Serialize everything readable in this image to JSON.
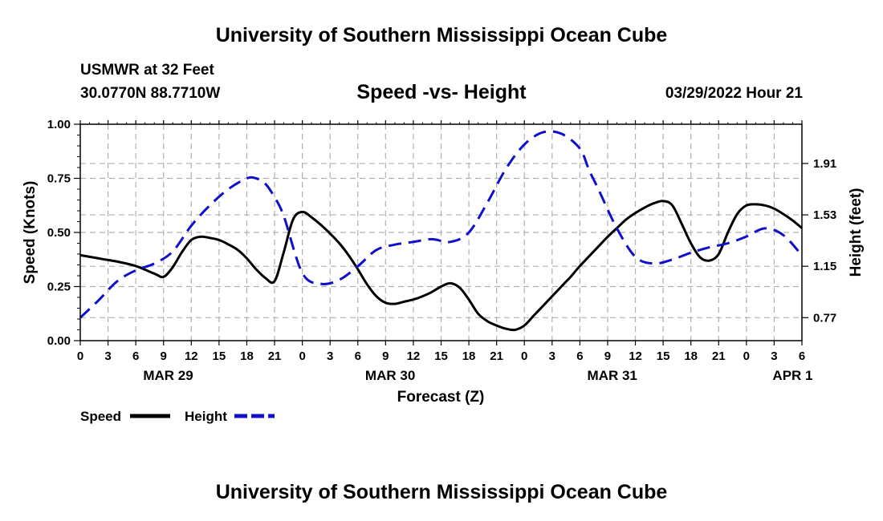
{
  "header": {
    "title": "University of Southern Mississippi Ocean Cube",
    "station": "USMWR at 32 Feet",
    "coords": "30.0770N  88.7710W",
    "chart_title": "Speed -vs- Height",
    "datetime": "03/29/2022 Hour 21"
  },
  "footer": {
    "title": "University of Southern Mississippi Ocean Cube"
  },
  "colors": {
    "speed": "#000000",
    "height": "#1010cc",
    "grid": "#b0b0b0"
  },
  "chart_data": {
    "type": "line",
    "title": "Speed -vs- Height",
    "xlabel": "Forecast (Z)",
    "ylabel_left": "Speed (Knots)",
    "ylabel_right": "Height (feet)",
    "xlim": [
      0,
      78
    ],
    "x_tick_step": 3,
    "x_tick_labels": [
      "0",
      "3",
      "6",
      "9",
      "12",
      "15",
      "18",
      "21",
      "0",
      "3",
      "6",
      "9",
      "12",
      "15",
      "18",
      "21",
      "0",
      "3",
      "6",
      "9",
      "12",
      "15",
      "18",
      "21",
      "0",
      "3",
      "6"
    ],
    "date_labels": [
      {
        "x": 9.5,
        "label": "MAR 29"
      },
      {
        "x": 33.5,
        "label": "MAR 30"
      },
      {
        "x": 57.5,
        "label": "MAR 31"
      },
      {
        "x": 77,
        "label": "APR 1"
      }
    ],
    "y_left": {
      "range": [
        0,
        1.0
      ],
      "ticks": [
        0,
        0.25,
        0.5,
        0.75,
        1.0
      ],
      "tick_labels": [
        "0.00",
        "0.25",
        "0.50",
        "0.75",
        "1.00"
      ]
    },
    "y_right": {
      "range": [
        0.6,
        2.2
      ],
      "ticks": [
        0.77,
        1.15,
        1.53,
        1.91
      ],
      "tick_labels": [
        "0.77",
        "1.15",
        "1.53",
        "1.91"
      ]
    },
    "legend": {
      "position": "bottom-left",
      "entries": [
        {
          "label": "Speed",
          "series": "speed"
        },
        {
          "label": "Height",
          "series": "height"
        }
      ]
    },
    "series": [
      {
        "name": "Speed",
        "key": "speed",
        "axis": "left",
        "style": "solid",
        "x": [
          0,
          2,
          4,
          6,
          8,
          9,
          10,
          11,
          12,
          13,
          14,
          15,
          16,
          17,
          18,
          19,
          20,
          21,
          22,
          23,
          24,
          25,
          26,
          27,
          28,
          29,
          30,
          31,
          32,
          33,
          34,
          35,
          36,
          37,
          38,
          39,
          40,
          41,
          42,
          43,
          44,
          45,
          46,
          47,
          48,
          49,
          50,
          51,
          52,
          53,
          54,
          55,
          56,
          57,
          58,
          59,
          60,
          61,
          62,
          63,
          64,
          65,
          66,
          67,
          68,
          69,
          70,
          71,
          72,
          73,
          74,
          75,
          76,
          77,
          78
        ],
        "values": [
          0.395,
          0.38,
          0.365,
          0.345,
          0.31,
          0.295,
          0.34,
          0.41,
          0.465,
          0.48,
          0.475,
          0.465,
          0.445,
          0.42,
          0.38,
          0.33,
          0.29,
          0.275,
          0.41,
          0.56,
          0.595,
          0.57,
          0.535,
          0.495,
          0.45,
          0.395,
          0.33,
          0.26,
          0.205,
          0.175,
          0.17,
          0.18,
          0.19,
          0.205,
          0.225,
          0.25,
          0.265,
          0.245,
          0.19,
          0.125,
          0.09,
          0.07,
          0.055,
          0.05,
          0.07,
          0.115,
          0.16,
          0.205,
          0.25,
          0.295,
          0.345,
          0.39,
          0.435,
          0.48,
          0.52,
          0.56,
          0.59,
          0.615,
          0.635,
          0.645,
          0.625,
          0.54,
          0.45,
          0.385,
          0.37,
          0.4,
          0.5,
          0.585,
          0.625,
          0.63,
          0.625,
          0.61,
          0.585,
          0.555,
          0.52
        ]
      },
      {
        "name": "Height",
        "key": "height",
        "axis": "right",
        "style": "dashed",
        "x": [
          0,
          2,
          4,
          6,
          8,
          10,
          12,
          14,
          16,
          18,
          19,
          20,
          21,
          22,
          24,
          26,
          28,
          30,
          32,
          34,
          36,
          38,
          40,
          42,
          44,
          46,
          48,
          50,
          52,
          54,
          55,
          56,
          58,
          60,
          62,
          64,
          66,
          68,
          70,
          72,
          74,
          76,
          78
        ],
        "values": [
          0.77,
          0.9,
          1.04,
          1.12,
          1.17,
          1.26,
          1.45,
          1.6,
          1.72,
          1.8,
          1.8,
          1.76,
          1.66,
          1.52,
          1.1,
          1.02,
          1.05,
          1.15,
          1.27,
          1.31,
          1.33,
          1.35,
          1.33,
          1.4,
          1.62,
          1.87,
          2.05,
          2.14,
          2.13,
          2.02,
          1.86,
          1.72,
          1.43,
          1.22,
          1.17,
          1.2,
          1.25,
          1.29,
          1.32,
          1.37,
          1.43,
          1.38,
          1.23
        ]
      }
    ]
  }
}
